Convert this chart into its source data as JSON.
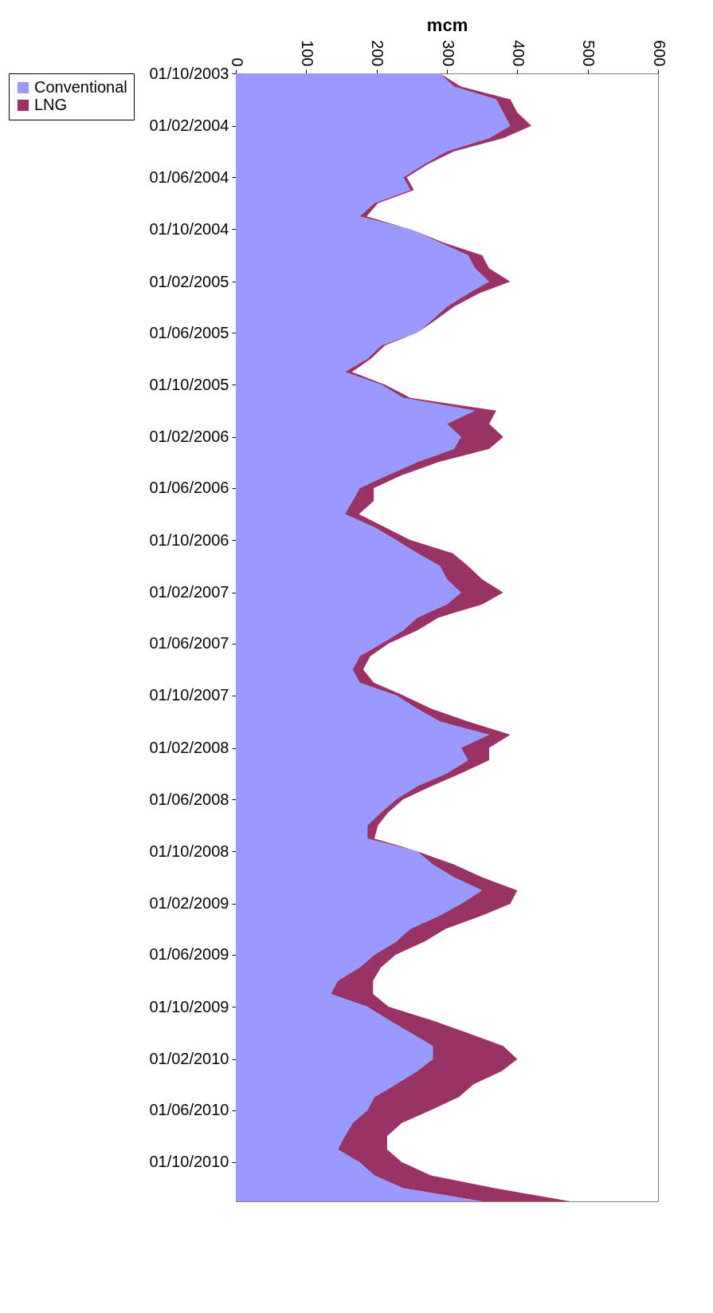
{
  "chart_data": {
    "type": "area",
    "stacked": true,
    "orientation": "horizontal",
    "xlabel": "mcm",
    "x": [
      "2003-10-01",
      "2003-11-01",
      "2003-12-01",
      "2004-01-01",
      "2004-02-01",
      "2004-03-01",
      "2004-04-01",
      "2004-05-01",
      "2004-06-01",
      "2004-07-01",
      "2004-08-01",
      "2004-09-01",
      "2004-10-01",
      "2004-11-01",
      "2004-12-01",
      "2005-01-01",
      "2005-02-01",
      "2005-03-01",
      "2005-04-01",
      "2005-05-01",
      "2005-06-01",
      "2005-07-01",
      "2005-08-01",
      "2005-09-01",
      "2005-10-01",
      "2005-11-01",
      "2005-12-01",
      "2006-01-01",
      "2006-02-01",
      "2006-03-01",
      "2006-04-01",
      "2006-05-01",
      "2006-06-01",
      "2006-07-01",
      "2006-08-01",
      "2006-09-01",
      "2006-10-01",
      "2006-11-01",
      "2006-12-01",
      "2007-01-01",
      "2007-02-01",
      "2007-03-01",
      "2007-04-01",
      "2007-05-01",
      "2007-06-01",
      "2007-07-01",
      "2007-08-01",
      "2007-09-01",
      "2007-10-01",
      "2007-11-01",
      "2007-12-01",
      "2008-01-01",
      "2008-02-01",
      "2008-03-01",
      "2008-04-01",
      "2008-05-01",
      "2008-06-01",
      "2008-07-01",
      "2008-08-01",
      "2008-09-01",
      "2008-10-01",
      "2008-11-01",
      "2008-12-01",
      "2009-01-01",
      "2009-02-01",
      "2009-03-01",
      "2009-04-01",
      "2009-05-01",
      "2009-06-01",
      "2009-07-01",
      "2009-08-01",
      "2009-09-01",
      "2009-10-01",
      "2009-11-01",
      "2009-12-01",
      "2010-01-01",
      "2010-02-01",
      "2010-03-01",
      "2010-04-01",
      "2010-05-01",
      "2010-06-01",
      "2010-07-01",
      "2010-08-01",
      "2010-09-01",
      "2010-10-01",
      "2010-11-01",
      "2010-12-01",
      "2011-01-01"
    ],
    "series": [
      {
        "name": "Conventional",
        "color": "#9999ff",
        "values": [
          290,
          310,
          370,
          380,
          390,
          360,
          300,
          268,
          238,
          248,
          197,
          176,
          248,
          290,
          330,
          340,
          360,
          330,
          300,
          280,
          258,
          207,
          187,
          155,
          207,
          238,
          340,
          300,
          320,
          310,
          258,
          217,
          176,
          166,
          155,
          197,
          228,
          258,
          290,
          300,
          320,
          300,
          258,
          238,
          207,
          176,
          166,
          176,
          228,
          258,
          290,
          360,
          320,
          330,
          300,
          258,
          228,
          207,
          187,
          187,
          258,
          280,
          310,
          350,
          320,
          290,
          248,
          228,
          197,
          176,
          145,
          135,
          187,
          217,
          248,
          280,
          280,
          258,
          228,
          197,
          187,
          166,
          155,
          145,
          176,
          197,
          238,
          350
        ]
      },
      {
        "name": "LNG",
        "color": "#993366",
        "values": [
          0,
          10,
          20,
          20,
          30,
          20,
          10,
          5,
          5,
          5,
          5,
          10,
          0,
          5,
          20,
          20,
          30,
          15,
          10,
          5,
          0,
          5,
          5,
          10,
          5,
          10,
          30,
          60,
          60,
          50,
          30,
          20,
          20,
          30,
          20,
          15,
          20,
          50,
          40,
          50,
          60,
          50,
          30,
          20,
          10,
          15,
          15,
          20,
          10,
          20,
          40,
          30,
          40,
          30,
          20,
          20,
          10,
          10,
          15,
          10,
          0,
          30,
          40,
          50,
          70,
          60,
          50,
          40,
          30,
          30,
          50,
          60,
          30,
          60,
          80,
          100,
          120,
          120,
          110,
          120,
          90,
          70,
          60,
          70,
          60,
          80,
          130,
          125
        ]
      }
    ],
    "xlim": [
      0,
      600
    ],
    "xticks": [
      0,
      100,
      200,
      300,
      400,
      500,
      600
    ],
    "ylim": [
      "2011-01-01",
      "2003-10-01"
    ],
    "yticks": [
      {
        "value": "2003-10-01",
        "label": "01/10/2003"
      },
      {
        "value": "2004-02-01",
        "label": "01/02/2004"
      },
      {
        "value": "2004-06-01",
        "label": "01/06/2004"
      },
      {
        "value": "2004-10-01",
        "label": "01/10/2004"
      },
      {
        "value": "2005-02-01",
        "label": "01/02/2005"
      },
      {
        "value": "2005-06-01",
        "label": "01/06/2005"
      },
      {
        "value": "2005-10-01",
        "label": "01/10/2005"
      },
      {
        "value": "2006-02-01",
        "label": "01/02/2006"
      },
      {
        "value": "2006-06-01",
        "label": "01/06/2006"
      },
      {
        "value": "2006-10-01",
        "label": "01/10/2006"
      },
      {
        "value": "2007-02-01",
        "label": "01/02/2007"
      },
      {
        "value": "2007-06-01",
        "label": "01/06/2007"
      },
      {
        "value": "2007-10-01",
        "label": "01/10/2007"
      },
      {
        "value": "2008-02-01",
        "label": "01/02/2008"
      },
      {
        "value": "2008-06-01",
        "label": "01/06/2008"
      },
      {
        "value": "2008-10-01",
        "label": "01/10/2008"
      },
      {
        "value": "2009-02-01",
        "label": "01/02/2009"
      },
      {
        "value": "2009-06-01",
        "label": "01/06/2009"
      },
      {
        "value": "2009-10-01",
        "label": "01/10/2009"
      },
      {
        "value": "2010-02-01",
        "label": "01/02/2010"
      },
      {
        "value": "2010-06-01",
        "label": "01/06/2010"
      },
      {
        "value": "2010-10-01",
        "label": "01/10/2010"
      }
    ],
    "grid": false,
    "legend": "left"
  }
}
